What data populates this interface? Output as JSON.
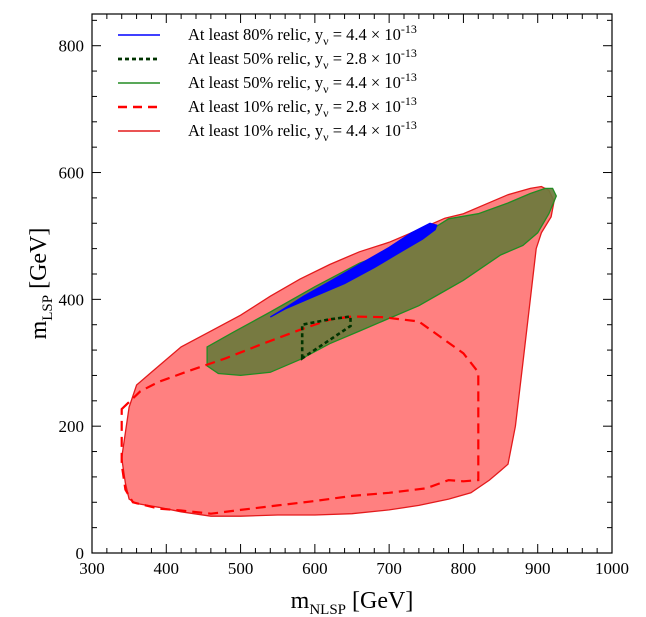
{
  "chart_data": {
    "type": "area",
    "x_range": [
      300,
      1000
    ],
    "y_range": [
      0,
      850
    ],
    "x_ticks": [
      "300",
      "400",
      "500",
      "600",
      "700",
      "800",
      "900",
      "1000"
    ],
    "y_ticks": [
      "0",
      "200",
      "400",
      "600",
      "800"
    ],
    "xlabel": {
      "main": "m",
      "sub": "NLSP",
      "unit": " [GeV]"
    },
    "ylabel": {
      "main": "m",
      "sub": "LSP",
      "unit": " [GeV]"
    },
    "grid": false,
    "legend_position": "top-left",
    "series": [
      {
        "label": {
          "text": "At least 80% relic, y",
          "sub": "ν",
          "mid": " = 4.4 × 10",
          "sup": "-13"
        },
        "color": "#0000ff",
        "style": "solid-fill",
        "x": [
          540,
          560,
          600,
          640,
          680,
          720,
          745,
          762,
          764,
          755,
          730,
          700,
          660,
          620,
          585,
          558,
          540
        ],
        "y": [
          372,
          385,
          405,
          425,
          450,
          478,
          495,
          510,
          517,
          520,
          505,
          482,
          455,
          428,
          405,
          385,
          372
        ]
      },
      {
        "label": {
          "text": "At least 50% relic, y",
          "sub": "ν",
          "mid": " = 2.8 × 10",
          "sup": "-13"
        },
        "color": "#003300",
        "style": "dotted",
        "x": [
          583,
          583,
          618,
          648,
          648,
          583
        ],
        "y": [
          307,
          360,
          368,
          373,
          358,
          307
        ]
      },
      {
        "label": {
          "text": "At least 50% relic, y",
          "sub": "ν",
          "mid": " = 4.4 × 10",
          "sup": "-13"
        },
        "color": "#228b22",
        "fill": "#6b7a3c",
        "style": "solid-fill",
        "x": [
          455,
          490,
          540,
          600,
          660,
          700,
          750,
          780,
          820,
          860,
          890,
          910,
          920,
          925,
          915,
          900,
          880,
          850,
          800,
          770,
          740,
          700,
          660,
          620,
          580,
          540,
          500,
          470,
          455
        ],
        "y": [
          325,
          348,
          380,
          420,
          457,
          475,
          505,
          527,
          535,
          552,
          567,
          575,
          575,
          563,
          535,
          505,
          485,
          470,
          430,
          410,
          390,
          370,
          350,
          330,
          305,
          285,
          280,
          283,
          295
        ]
      },
      {
        "label": {
          "text": "At least 10% relic, y",
          "sub": "ν",
          "mid": " = 2.8 × 10",
          "sup": "-13"
        },
        "color": "#ff0000",
        "style": "dashed",
        "x": [
          340,
          365,
          390,
          430,
          480,
          530,
          580,
          620,
          650,
          690,
          740,
          770,
          800,
          820,
          820,
          800,
          780,
          750,
          700,
          650,
          600,
          550,
          500,
          460,
          420,
          390,
          355,
          345,
          340,
          340
        ],
        "y": [
          227,
          255,
          270,
          287,
          307,
          330,
          352,
          368,
          373,
          372,
          365,
          340,
          315,
          285,
          115,
          113,
          115,
          102,
          95,
          90,
          82,
          75,
          68,
          62,
          67,
          70,
          80,
          100,
          140,
          227
        ]
      },
      {
        "label": {
          "text": "At least 10% relic, y",
          "sub": "ν",
          "mid": " = 4.4 × 10",
          "sup": "-13"
        },
        "color": "#e31a1c",
        "fill": "#ff8080",
        "style": "solid-fill",
        "x": [
          340,
          350,
          360,
          380,
          420,
          460,
          500,
          540,
          580,
          620,
          660,
          700,
          740,
          775,
          800,
          830,
          860,
          890,
          905,
          915,
          922,
          918,
          905,
          898,
          890,
          880,
          870,
          860,
          850,
          835,
          810,
          780,
          740,
          700,
          650,
          600,
          550,
          500,
          460,
          420,
          390,
          360,
          350,
          345,
          340
        ],
        "y": [
          150,
          230,
          265,
          285,
          325,
          350,
          375,
          405,
          432,
          455,
          475,
          490,
          510,
          528,
          535,
          550,
          565,
          575,
          578,
          572,
          555,
          530,
          505,
          480,
          400,
          300,
          200,
          140,
          130,
          115,
          95,
          85,
          75,
          68,
          62,
          60,
          60,
          58,
          58,
          65,
          72,
          78,
          85,
          110,
          150
        ]
      }
    ]
  }
}
